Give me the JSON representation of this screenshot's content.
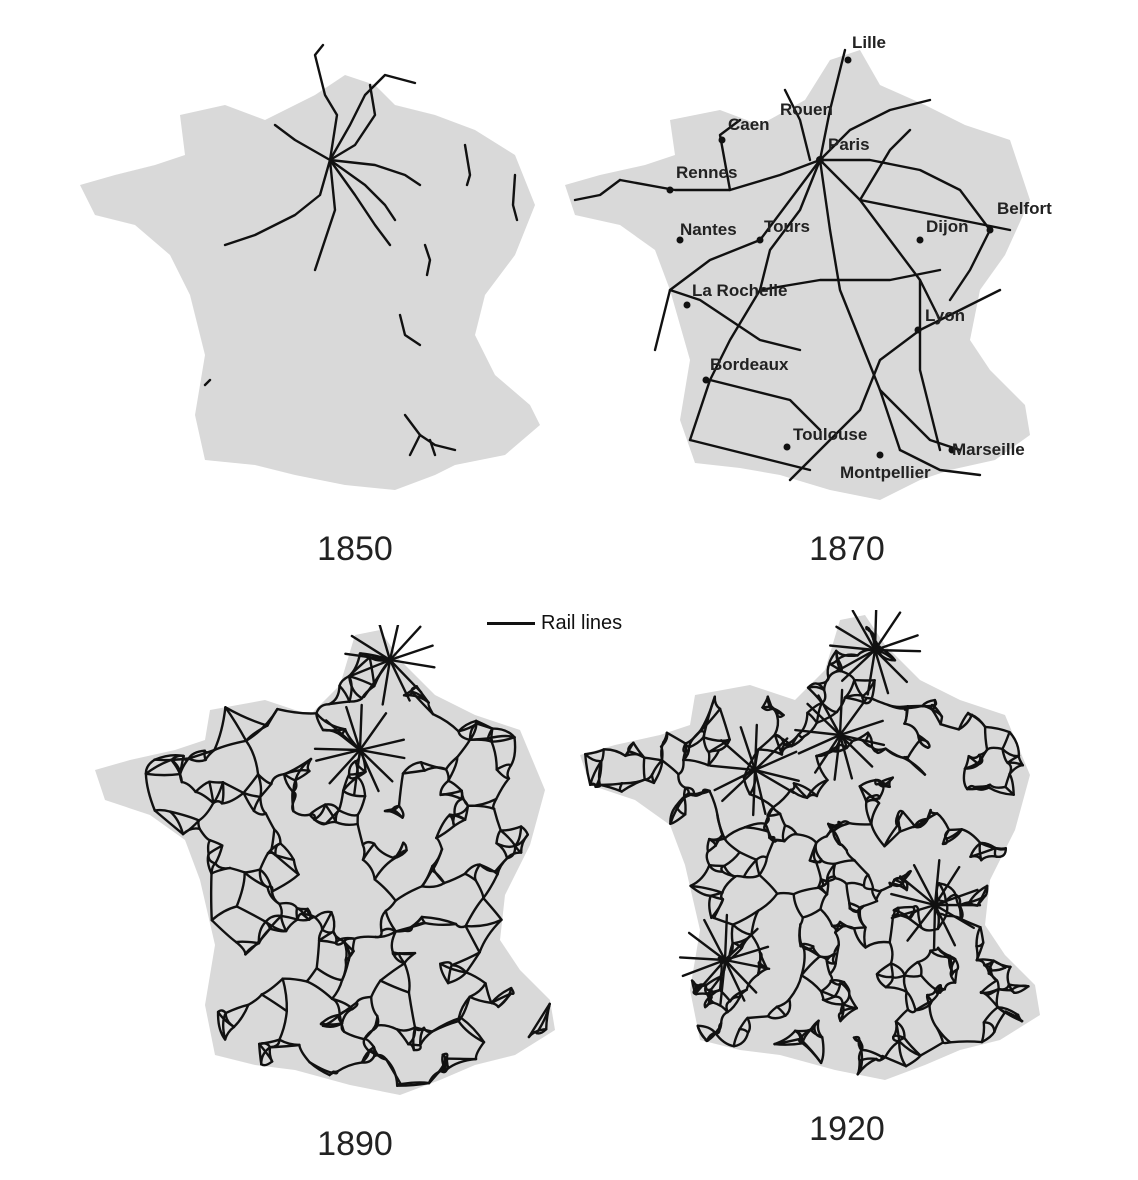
{
  "maps": [
    {
      "year": "1850"
    },
    {
      "year": "1870"
    },
    {
      "year": "1890"
    },
    {
      "year": "1920"
    }
  ],
  "legend": {
    "label": "Rail lines",
    "line_color": "#111111"
  },
  "land_color": "#d9d9d9",
  "rail_color": "#111111",
  "cities_1870": [
    "Lille",
    "Rouen",
    "Caen",
    "Paris",
    "Rennes",
    "Belfort",
    "Nantes",
    "Tours",
    "Dijon",
    "La Rochelle",
    "Lyon",
    "Bordeaux",
    "Toulouse",
    "Marseille",
    "Montpellier"
  ]
}
